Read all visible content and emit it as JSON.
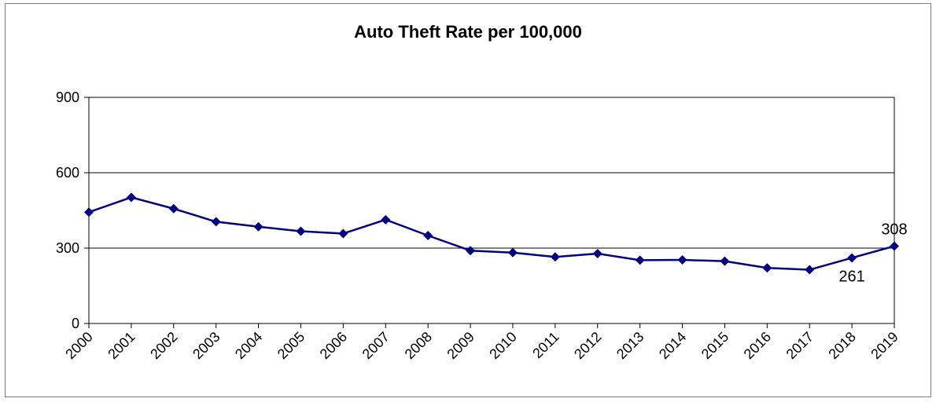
{
  "chart_data": {
    "type": "line",
    "title": "Auto Theft Rate per 100,000",
    "xlabel": "",
    "ylabel": "",
    "categories": [
      "2000",
      "2001",
      "2002",
      "2003",
      "2004",
      "2005",
      "2006",
      "2007",
      "2008",
      "2009",
      "2010",
      "2011",
      "2012",
      "2013",
      "2014",
      "2015",
      "2016",
      "2017",
      "2018",
      "2019"
    ],
    "series": [
      {
        "values": [
          443,
          502,
          457,
          405,
          385,
          367,
          358,
          413,
          350,
          290,
          282,
          265,
          278,
          252,
          253,
          248,
          221,
          214,
          261,
          308
        ]
      }
    ],
    "ylim": [
      0,
      900
    ],
    "yticks": [
      0,
      300,
      600,
      900
    ],
    "ytick_labels": [
      "0",
      "300",
      "600",
      "900"
    ],
    "grid": true,
    "legend": "none",
    "data_labels": [
      {
        "category": "2018",
        "text": "261",
        "placement": "below"
      },
      {
        "category": "2019",
        "text": "308",
        "placement": "above"
      }
    ],
    "line_color": "#000080",
    "marker_color": "#000080",
    "marker": "diamond"
  }
}
